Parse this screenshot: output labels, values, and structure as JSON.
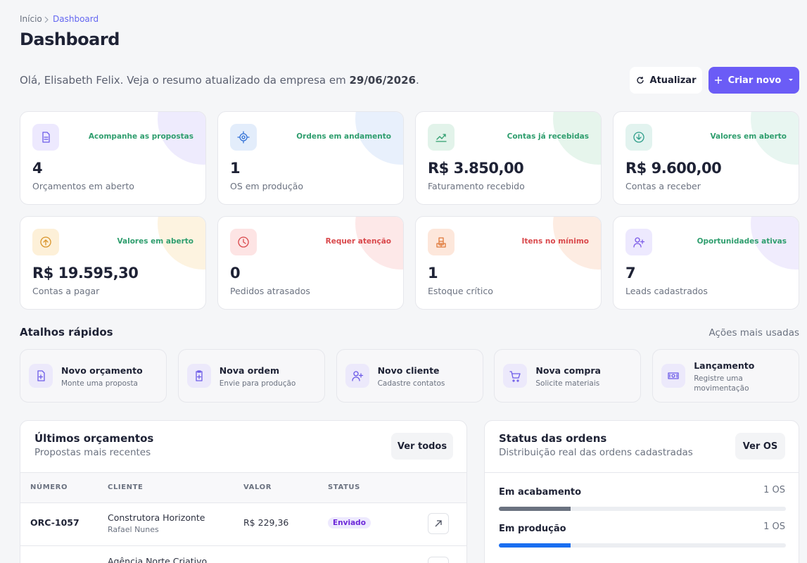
{
  "breadcrumb": [
    "Início",
    "Dashboard"
  ],
  "title": "Dashboard",
  "greeting": {
    "text": "Olá, Elisabeth Felix. Veja o resumo atualizado da empresa em ",
    "date": "29/06/2026",
    "suffix": "."
  },
  "buttons": {
    "refresh": "Atualizar",
    "create": "Criar novo"
  },
  "cards": [
    {
      "tag": "Acompanhe as propostas",
      "value": "4",
      "label": "Orçamentos em aberto"
    },
    {
      "tag": "Ordens em andamento",
      "value": "1",
      "label": "OS em produção"
    },
    {
      "tag": "Contas já recebidas",
      "value": "R$ 3.850,00",
      "label": "Faturamento recebido"
    },
    {
      "tag": "Valores em aberto",
      "value": "R$ 9.600,00",
      "label": "Contas a receber"
    },
    {
      "tag": "Valores em aberto",
      "value": "R$ 19.595,30",
      "label": "Contas a pagar"
    },
    {
      "tag": "Requer atenção",
      "value": "0",
      "label": "Pedidos atrasados"
    },
    {
      "tag": "Itens no mínimo",
      "value": "1",
      "label": "Estoque crítico"
    },
    {
      "tag": "Oportunidades ativas",
      "value": "7",
      "label": "Leads cadastrados"
    }
  ],
  "shortcuts": {
    "title": "Atalhos rápidos",
    "hint": "Ações mais usadas",
    "items": [
      {
        "title": "Novo orçamento",
        "subtitle": "Monte uma proposta"
      },
      {
        "title": "Nova ordem",
        "subtitle": "Envie para produção"
      },
      {
        "title": "Novo cliente",
        "subtitle": "Cadastre contatos"
      },
      {
        "title": "Nova compra",
        "subtitle": "Solicite materiais"
      },
      {
        "title": "Lançamento",
        "subtitle": "Registre uma movimentação"
      }
    ]
  },
  "quotes": {
    "title": "Últimos orçamentos",
    "subtitle": "Propostas mais recentes",
    "button": "Ver todos",
    "columns": [
      "NÚMERO",
      "CLIENTE",
      "VALOR",
      "STATUS"
    ],
    "rows": [
      {
        "number": "ORC-1057",
        "client": "Construtora Horizonte",
        "contact": "Rafael Nunes",
        "value": "R$ 229,36",
        "status": "Enviado"
      },
      {
        "client": "Agência Norte Criativo"
      }
    ]
  },
  "orders": {
    "title": "Status das ordens",
    "subtitle": "Distribuição real das ordens cadastradas",
    "button": "Ver OS",
    "items": [
      {
        "label": "Em acabamento",
        "count": "1 OS",
        "share": 25
      },
      {
        "label": "Em produção",
        "count": "1 OS",
        "share": 25
      }
    ]
  }
}
